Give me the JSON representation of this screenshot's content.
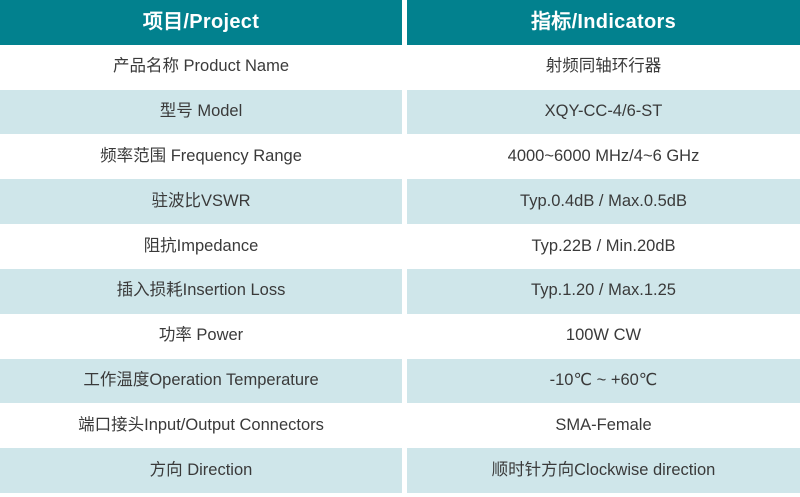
{
  "colors": {
    "header_bg": "#02818e",
    "header_text": "#ffffff",
    "row_tint": "#cfe6ea",
    "row_white": "#ffffff",
    "body_text": "#3a3a3a"
  },
  "table": {
    "header": {
      "project": "项目/Project",
      "indicators": "指标/Indicators"
    },
    "rows": [
      {
        "label": "产品名称 Product Name",
        "value": "射频同轴环行器"
      },
      {
        "label": "型号 Model",
        "value": "XQY-CC-4/6-ST"
      },
      {
        "label": "频率范围 Frequency Range",
        "value": "4000~6000 MHz/4~6 GHz"
      },
      {
        "label": "驻波比VSWR",
        "value": "Typ.0.4dB / Max.0.5dB"
      },
      {
        "label": "阻抗Impedance",
        "value": "Typ.22B / Min.20dB"
      },
      {
        "label": "插入损耗Insertion Loss",
        "value": "Typ.1.20 / Max.1.25"
      },
      {
        "label": "功率 Power",
        "value": "100W CW"
      },
      {
        "label": "工作温度Operation Temperature",
        "value": "-10℃ ~ +60℃"
      },
      {
        "label": "端口接头Input/Output Connectors",
        "value": "SMA-Female"
      },
      {
        "label": "方向 Direction",
        "value": "顺时针方向Clockwise direction"
      }
    ]
  }
}
